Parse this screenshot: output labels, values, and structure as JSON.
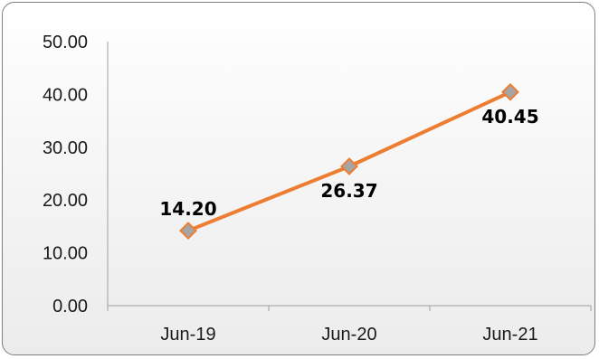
{
  "chart_data": {
    "type": "line",
    "title": "",
    "xlabel": "",
    "ylabel": "",
    "categories": [
      "Jun-19",
      "Jun-20",
      "Jun-21"
    ],
    "series": [
      {
        "values": [
          14.2,
          26.37,
          40.45
        ],
        "data_labels": [
          "14.20",
          "26.37",
          "40.45"
        ],
        "line_color": "#ed7d31",
        "marker": "diamond",
        "marker_color": "#a5a5a5"
      }
    ],
    "ylim": [
      0,
      50
    ],
    "yticks": [
      "0.00",
      "10.00",
      "20.00",
      "30.00",
      "40.00",
      "50.00"
    ],
    "grid": false,
    "legend": "none"
  }
}
